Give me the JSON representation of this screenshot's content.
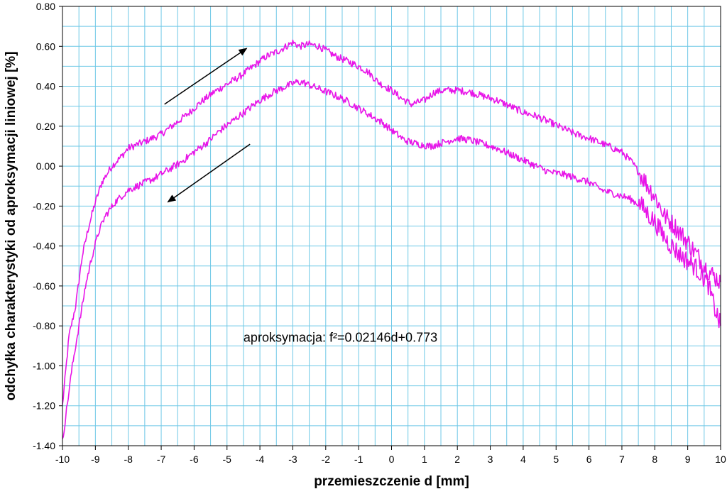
{
  "chart_data": {
    "type": "line",
    "title": "",
    "xlabel": "przemieszczenie d [mm]",
    "ylabel": "odchyłka charakterystyki od aproksymacji liniowej [%]",
    "xlim": [
      -10,
      10
    ],
    "ylim": [
      -1.4,
      0.8
    ],
    "x_ticks": [
      -10,
      -9,
      -8,
      -7,
      -6,
      -5,
      -4,
      -3,
      -2,
      -1,
      0,
      1,
      2,
      3,
      4,
      5,
      6,
      7,
      8,
      9,
      10
    ],
    "x_tick_labels": [
      "-10",
      "-9",
      "-8",
      "-7",
      "-6",
      "-5",
      "-4",
      "-3",
      "-2",
      "-1",
      "0",
      "1",
      "2",
      "3",
      "4",
      "5",
      "6",
      "7",
      "8",
      "9",
      "10"
    ],
    "y_ticks": [
      0.8,
      0.6,
      0.4,
      0.2,
      0.0,
      -0.2,
      -0.4,
      -0.6,
      -0.8,
      -1.0,
      -1.2,
      -1.4
    ],
    "y_tick_labels": [
      "0.80",
      "0.60",
      "0.40",
      "0.20",
      "0.00",
      "-0.20",
      "-0.40",
      "-0.60",
      "-0.80",
      "-1.00",
      "-1.20",
      "-1.40"
    ],
    "grid": true,
    "minor_grid": true,
    "line_color": "#e815e8",
    "annotation": "aproksymacja: f²=0.02146d+0.773",
    "series": [
      {
        "x": [
          -10,
          -9.8,
          -9.6,
          -9.4,
          -9.2,
          -9,
          -8.8,
          -8.5,
          -8.2,
          -8,
          -7.7,
          -7.4,
          -7,
          -6.6,
          -6.2,
          -5.8,
          -5.4,
          -5,
          -4.6,
          -4.2,
          -3.8,
          -3.4,
          -3.1,
          -3,
          -2.8,
          -2.5,
          -2.2,
          -2,
          -1.7,
          -1.4,
          -1,
          -0.7,
          -0.4,
          0,
          0.3,
          0.6,
          1,
          1.3,
          1.6,
          2,
          2.4,
          2.8,
          3.2,
          3.6,
          4,
          4.4,
          4.8,
          5.2,
          5.6,
          6,
          6.3,
          6.6,
          7,
          7.3,
          7.6,
          8,
          8.3,
          8.6,
          9,
          9.3,
          9.6,
          9.8,
          10
        ],
        "y": [
          -1.2,
          -0.85,
          -0.7,
          -0.45,
          -0.3,
          -0.18,
          -0.08,
          0.0,
          0.05,
          0.09,
          0.11,
          0.13,
          0.16,
          0.21,
          0.26,
          0.32,
          0.37,
          0.41,
          0.45,
          0.5,
          0.55,
          0.58,
          0.61,
          0.62,
          0.6,
          0.61,
          0.6,
          0.58,
          0.55,
          0.53,
          0.5,
          0.47,
          0.42,
          0.38,
          0.34,
          0.31,
          0.33,
          0.37,
          0.38,
          0.38,
          0.37,
          0.35,
          0.33,
          0.3,
          0.27,
          0.25,
          0.22,
          0.19,
          0.16,
          0.14,
          0.12,
          0.1,
          0.07,
          0.02,
          -0.05,
          -0.15,
          -0.25,
          -0.3,
          -0.38,
          -0.45,
          -0.52,
          -0.55,
          -0.58
        ]
      },
      {
        "x": [
          -10,
          -9.9,
          -9.7,
          -9.5,
          -9.3,
          -9.1,
          -8.9,
          -8.7,
          -8.4,
          -8,
          -7.6,
          -7.2,
          -6.8,
          -6.4,
          -6,
          -5.6,
          -5.2,
          -4.8,
          -4.4,
          -4,
          -3.6,
          -3.2,
          -2.9,
          -2.7,
          -2.4,
          -2.1,
          -1.8,
          -1.4,
          -1,
          -0.6,
          -0.3,
          0,
          0.4,
          0.8,
          1.2,
          1.6,
          2,
          2.4,
          2.8,
          3.2,
          3.6,
          4,
          4.4,
          4.8,
          5.2,
          5.6,
          6,
          6.4,
          6.8,
          7.2,
          7.6,
          8,
          8.4,
          8.8,
          9.2,
          9.6,
          9.8,
          10
        ],
        "y": [
          -1.38,
          -1.25,
          -1.0,
          -0.8,
          -0.6,
          -0.45,
          -0.33,
          -0.25,
          -0.18,
          -0.12,
          -0.09,
          -0.06,
          -0.02,
          0.02,
          0.07,
          0.12,
          0.18,
          0.23,
          0.28,
          0.33,
          0.37,
          0.4,
          0.42,
          0.42,
          0.4,
          0.38,
          0.36,
          0.33,
          0.29,
          0.25,
          0.22,
          0.18,
          0.13,
          0.11,
          0.1,
          0.12,
          0.14,
          0.13,
          0.11,
          0.09,
          0.06,
          0.03,
          0.0,
          -0.03,
          -0.04,
          -0.06,
          -0.08,
          -0.12,
          -0.14,
          -0.16,
          -0.2,
          -0.28,
          -0.38,
          -0.45,
          -0.5,
          -0.58,
          -0.7,
          -0.8
        ]
      }
    ],
    "arrows": [
      {
        "direction": "up",
        "from": [
          -6.9,
          0.31
        ],
        "to": [
          -4.4,
          0.59
        ]
      },
      {
        "direction": "down",
        "from": [
          -4.3,
          0.11
        ],
        "to": [
          -6.8,
          -0.18
        ]
      }
    ]
  }
}
